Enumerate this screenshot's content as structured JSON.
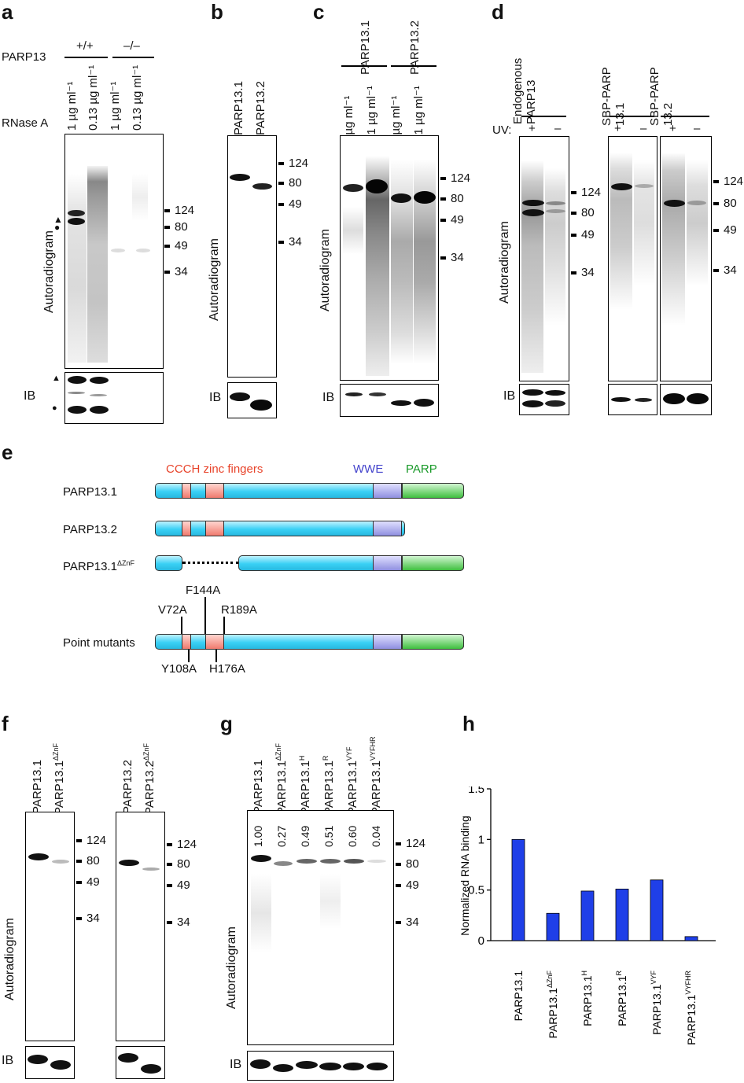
{
  "panels": {
    "a": "a",
    "b": "b",
    "c": "c",
    "d": "d",
    "e": "e",
    "f": "f",
    "g": "g",
    "h": "h"
  },
  "common": {
    "autoradiogram": "Autoradiogram",
    "ib": "IB",
    "mw": [
      "124",
      "80",
      "49",
      "34"
    ]
  },
  "a": {
    "parp13": "PARP13",
    "rnase": "RNase A",
    "wt": "+/+",
    "ko": "–/–",
    "lanes": [
      "1 µg ml⁻¹",
      "0.13 µg ml⁻¹",
      "1 µg ml⁻¹",
      "0.13 µg ml⁻¹"
    ]
  },
  "b": {
    "lanes": [
      "PARP13.1",
      "PARP13.2"
    ]
  },
  "c": {
    "groups": [
      "PARP13.1",
      "PARP13.2"
    ],
    "lanes": [
      "1 µg ml⁻¹",
      "0.1 µg ml⁻¹",
      "1 µg ml⁻¹",
      "0.1 µg ml⁻¹"
    ]
  },
  "d": {
    "uv": "UV:",
    "g1": "Endogenous PARP13",
    "g2": "SBP-PARP 13.1",
    "g3": "SBP-PARP 13.2",
    "plus": "+",
    "minus": "–"
  },
  "e": {
    "zinc": "CCCH zinc fingers",
    "wwe": "WWE",
    "parp": "PARP",
    "rows": [
      "PARP13.1",
      "PARP13.2",
      "PARP13.1",
      "Point mutants"
    ],
    "dznf": "ΔZnF",
    "muts": [
      "F144A",
      "V72A",
      "R189A",
      "Y108A",
      "H176A"
    ],
    "colors": {
      "zinc": "#e8432a",
      "wwe": "#4444cc",
      "parp": "#1a9a2a"
    }
  },
  "f": {
    "lanes": [
      "PARP13.1",
      "PARP13.1",
      "PARP13.2",
      "PARP13.2"
    ],
    "sup": "ΔZnF"
  },
  "g": {
    "lanes": [
      "PARP13.1",
      "PARP13.1",
      "PARP13.1",
      "PARP13.1",
      "PARP13.1",
      "PARP13.1"
    ],
    "sups": [
      "",
      "ΔZnF",
      "H",
      "R",
      "VYF",
      "VYFHR"
    ],
    "values": [
      "1.00",
      "0.27",
      "0.49",
      "0.51",
      "0.60",
      "0.04"
    ]
  },
  "chart_data": {
    "type": "bar",
    "categories": [
      "PARP13.1",
      "PARP13.1ΔZnF",
      "PARP13.1H",
      "PARP13.1R",
      "PARP13.1VYF",
      "PARP13.1VYFHR"
    ],
    "base": [
      "PARP13.1",
      "PARP13.1",
      "PARP13.1",
      "PARP13.1",
      "PARP13.1",
      "PARP13.1"
    ],
    "sups": [
      "",
      "ΔZnF",
      "H",
      "R",
      "VYF",
      "VYFHR"
    ],
    "values": [
      1.0,
      0.27,
      0.49,
      0.51,
      0.6,
      0.04
    ],
    "ylabel": "Normalized RNA binding",
    "yticks": [
      "0",
      "0.5",
      "1",
      "1.5"
    ],
    "ylim": [
      0,
      1.5
    ],
    "color": "#1f3fe8"
  }
}
